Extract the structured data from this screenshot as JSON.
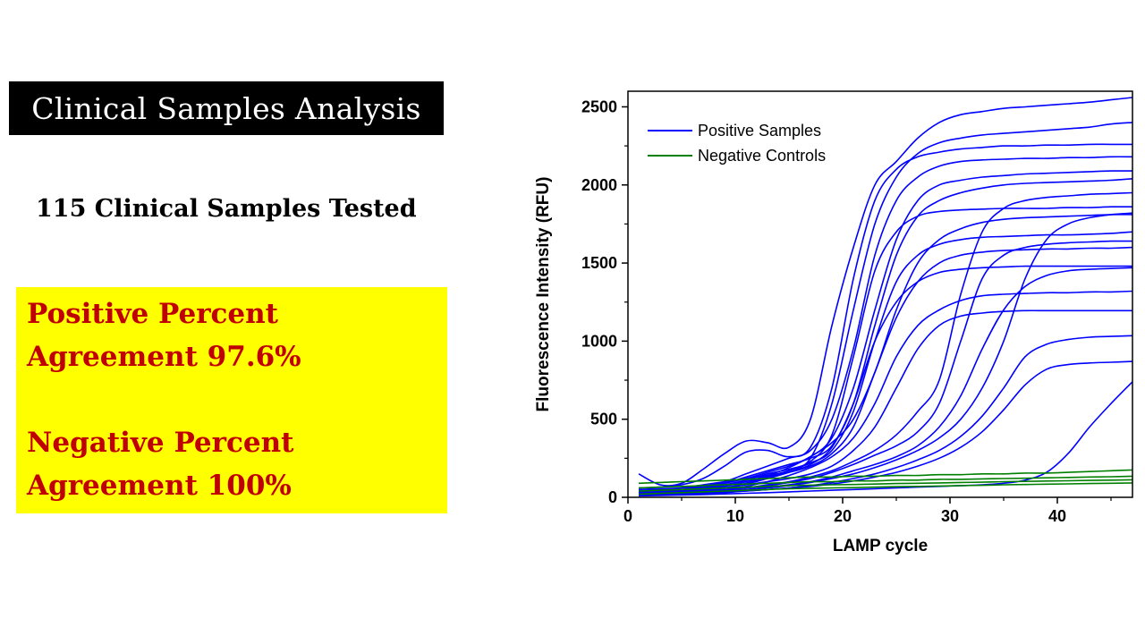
{
  "slide": {
    "title": "Clinical Samples Analysis",
    "subtitle": "115 Clinical Samples Tested",
    "results": [
      "Positive Percent",
      "Agreement 97.6%",
      "Negative Percent",
      "Agreement 100%"
    ],
    "colors": {
      "title_bg": "#000000",
      "title_text": "#ffffff",
      "box_bg": "#ffff00",
      "result_text": "#c00000"
    }
  },
  "chart_data": {
    "type": "line",
    "title": "",
    "xlabel": "LAMP cycle",
    "ylabel": "Fluorescence Intensity (RFU)",
    "xlim": [
      0,
      47
    ],
    "ylim": [
      0,
      2600
    ],
    "xticks": [
      0,
      10,
      20,
      30,
      40
    ],
    "yticks": [
      0,
      500,
      1000,
      1500,
      2000,
      2500
    ],
    "grid": false,
    "legend_position": "top-left",
    "legend": [
      {
        "label": "Positive Samples",
        "color": "#0000ff"
      },
      {
        "label": "Negative Controls",
        "color": "#008000"
      }
    ],
    "x": [
      1,
      3,
      5,
      7,
      9,
      11,
      13,
      15,
      17,
      19,
      21,
      23,
      25,
      27,
      29,
      31,
      33,
      35,
      37,
      39,
      41,
      43,
      45,
      47
    ],
    "series": [
      {
        "group": "positive",
        "values": [
          150,
          80,
          90,
          180,
          280,
          360,
          350,
          320,
          500,
          1100,
          1600,
          2000,
          2150,
          2300,
          2400,
          2450,
          2470,
          2490,
          2500,
          2510,
          2520,
          2530,
          2545,
          2560
        ]
      },
      {
        "group": "positive",
        "values": [
          40,
          50,
          60,
          80,
          100,
          120,
          140,
          170,
          250,
          600,
          1200,
          1750,
          2050,
          2200,
          2270,
          2300,
          2320,
          2330,
          2340,
          2350,
          2360,
          2370,
          2390,
          2400
        ]
      },
      {
        "group": "positive",
        "values": [
          60,
          65,
          80,
          120,
          200,
          290,
          300,
          260,
          320,
          700,
          1400,
          1900,
          2100,
          2180,
          2210,
          2230,
          2240,
          2250,
          2250,
          2255,
          2255,
          2260,
          2260,
          2260
        ]
      },
      {
        "group": "positive",
        "values": [
          30,
          40,
          50,
          70,
          100,
          150,
          200,
          250,
          300,
          500,
          950,
          1550,
          1900,
          2050,
          2120,
          2150,
          2160,
          2165,
          2170,
          2170,
          2175,
          2175,
          2180,
          2180
        ]
      },
      {
        "group": "positive",
        "values": [
          50,
          55,
          60,
          70,
          90,
          120,
          160,
          200,
          260,
          380,
          700,
          1200,
          1650,
          1900,
          2000,
          2030,
          2050,
          2060,
          2070,
          2075,
          2080,
          2085,
          2090,
          2090
        ]
      },
      {
        "group": "positive",
        "values": [
          20,
          30,
          40,
          60,
          90,
          130,
          170,
          210,
          250,
          330,
          600,
          1100,
          1550,
          1800,
          1900,
          1950,
          1980,
          2000,
          2010,
          2015,
          2020,
          2025,
          2030,
          2040
        ]
      },
      {
        "group": "positive",
        "values": [
          40,
          45,
          50,
          60,
          80,
          110,
          150,
          180,
          230,
          400,
          900,
          1450,
          1700,
          1800,
          1830,
          1840,
          1845,
          1850,
          1850,
          1850,
          1855,
          1855,
          1860,
          1860
        ]
      },
      {
        "group": "positive",
        "values": [
          30,
          35,
          40,
          50,
          70,
          100,
          140,
          190,
          260,
          350,
          500,
          800,
          1200,
          1500,
          1650,
          1720,
          1760,
          1780,
          1790,
          1795,
          1800,
          1805,
          1810,
          1810
        ]
      },
      {
        "group": "positive",
        "values": [
          20,
          25,
          30,
          40,
          60,
          90,
          130,
          170,
          220,
          300,
          550,
          1000,
          1380,
          1550,
          1620,
          1650,
          1665,
          1670,
          1675,
          1680,
          1680,
          1685,
          1690,
          1700
        ]
      },
      {
        "group": "positive",
        "values": [
          35,
          40,
          45,
          55,
          75,
          100,
          130,
          160,
          200,
          280,
          450,
          800,
          1150,
          1380,
          1500,
          1550,
          1570,
          1580,
          1585,
          1590,
          1590,
          1595,
          1595,
          1600
        ]
      },
      {
        "group": "positive",
        "values": [
          25,
          30,
          35,
          45,
          60,
          85,
          120,
          160,
          210,
          320,
          600,
          1000,
          1250,
          1380,
          1440,
          1460,
          1470,
          1475,
          1480,
          1480,
          1480,
          1480,
          1480,
          1480
        ]
      },
      {
        "group": "positive",
        "values": [
          15,
          20,
          25,
          35,
          50,
          70,
          100,
          140,
          190,
          260,
          380,
          600,
          900,
          1100,
          1200,
          1260,
          1290,
          1300,
          1305,
          1310,
          1310,
          1315,
          1315,
          1320
        ]
      },
      {
        "group": "positive",
        "values": [
          30,
          35,
          40,
          50,
          60,
          80,
          100,
          120,
          150,
          200,
          300,
          450,
          700,
          950,
          1100,
          1160,
          1180,
          1190,
          1195,
          1195,
          1195,
          1195,
          1195,
          1195
        ]
      },
      {
        "group": "positive",
        "values": [
          20,
          25,
          30,
          35,
          45,
          60,
          80,
          100,
          130,
          170,
          230,
          300,
          400,
          550,
          750,
          1300,
          1700,
          1850,
          1900,
          1920,
          1930,
          1940,
          1945,
          1950
        ]
      },
      {
        "group": "positive",
        "values": [
          25,
          30,
          35,
          40,
          50,
          60,
          75,
          95,
          120,
          160,
          210,
          270,
          330,
          420,
          600,
          1000,
          1400,
          1550,
          1600,
          1620,
          1630,
          1635,
          1640,
          1640
        ]
      },
      {
        "group": "positive",
        "values": [
          15,
          20,
          25,
          30,
          40,
          50,
          65,
          80,
          100,
          130,
          170,
          210,
          260,
          330,
          450,
          650,
          950,
          1200,
          1350,
          1420,
          1450,
          1460,
          1465,
          1470
        ]
      },
      {
        "group": "positive",
        "values": [
          20,
          25,
          30,
          35,
          40,
          50,
          60,
          75,
          95,
          120,
          150,
          190,
          240,
          300,
          380,
          500,
          700,
          1000,
          1400,
          1650,
          1750,
          1790,
          1810,
          1820
        ]
      },
      {
        "group": "positive",
        "values": [
          10,
          15,
          20,
          25,
          30,
          40,
          50,
          60,
          75,
          95,
          120,
          150,
          190,
          240,
          300,
          390,
          520,
          700,
          900,
          980,
          1010,
          1025,
          1030,
          1035
        ]
      },
      {
        "group": "positive",
        "values": [
          15,
          20,
          25,
          30,
          35,
          40,
          50,
          60,
          70,
          85,
          105,
          130,
          160,
          200,
          250,
          320,
          420,
          560,
          720,
          820,
          850,
          860,
          865,
          870
        ]
      },
      {
        "group": "positive",
        "values": [
          10,
          12,
          15,
          18,
          22,
          26,
          30,
          35,
          40,
          45,
          50,
          55,
          60,
          65,
          70,
          75,
          80,
          90,
          110,
          160,
          280,
          450,
          600,
          740
        ]
      }
    ],
    "negative_series": [
      {
        "group": "negative",
        "values": [
          90,
          95,
          100,
          105,
          110,
          115,
          120,
          125,
          130,
          130,
          135,
          135,
          140,
          140,
          145,
          145,
          150,
          150,
          155,
          155,
          160,
          165,
          170,
          175
        ]
      },
      {
        "group": "negative",
        "values": [
          60,
          65,
          70,
          75,
          80,
          85,
          90,
          95,
          100,
          100,
          105,
          105,
          110,
          110,
          115,
          115,
          118,
          120,
          122,
          125,
          127,
          130,
          132,
          135
        ]
      },
      {
        "group": "negative",
        "values": [
          40,
          45,
          50,
          55,
          60,
          65,
          70,
          75,
          78,
          80,
          82,
          85,
          88,
          90,
          92,
          95,
          97,
          100,
          102,
          104,
          106,
          108,
          110,
          112
        ]
      },
      {
        "group": "negative",
        "values": [
          20,
          25,
          30,
          35,
          40,
          45,
          50,
          55,
          58,
          60,
          62,
          65,
          68,
          70,
          72,
          75,
          77,
          80,
          82,
          84,
          86,
          88,
          90,
          92
        ]
      }
    ]
  }
}
